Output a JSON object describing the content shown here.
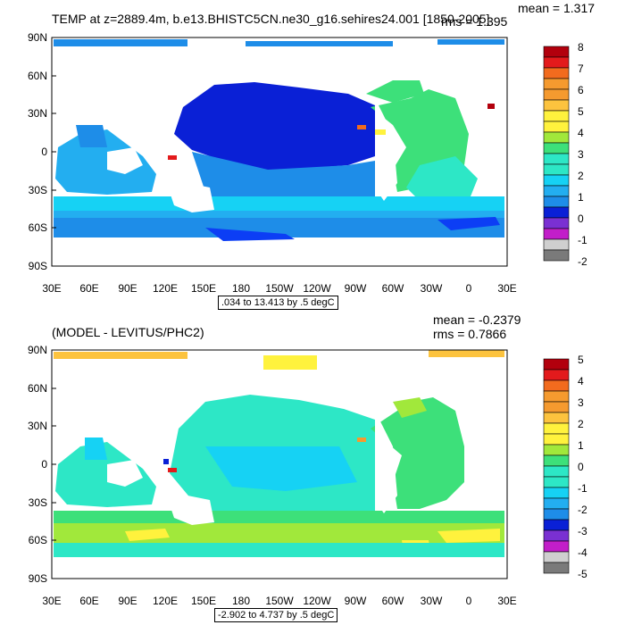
{
  "panels": [
    {
      "title": "TEMP at z=2889.4m, b.e13.BHISTC5CN.ne30_g16.sehires24.001 [1850-2005]",
      "mean": "mean = 1.317",
      "rms": "rms = 1.395",
      "range": ".034 to 13.413 by .5 degC",
      "colorbar": {
        "labels": [
          "8",
          "7",
          "6",
          "5",
          "4",
          "3",
          "2",
          "1",
          "0",
          "-1",
          "-2"
        ],
        "colors": [
          "#b2000d",
          "#e31a1c",
          "#f26b1e",
          "#f59a2f",
          "#fcc33e",
          "#fff23d",
          "#a1e83b",
          "#3de07a",
          "#2de7c6",
          "#16d2f4",
          "#23aef0",
          "#1e8de8",
          "#0c3ef5",
          "#0a20d6",
          "#7a30d2",
          "#c21ec9",
          "#f230e7",
          "#cfcfcf",
          "#7a7a7a"
        ]
      }
    },
    {
      "title": "(MODEL - LEVITUS/PHC2)",
      "mean": "mean = -0.2379",
      "rms": "rms = 0.7866",
      "range": "-2.902 to 4.737 by .5 degC",
      "colorbar": {
        "labels": [
          "5",
          "4",
          "3",
          "2",
          "1",
          "0",
          "-1",
          "-2",
          "-3",
          "-4",
          "-5"
        ],
        "colors": [
          "#b2000d",
          "#e31a1c",
          "#f26b1e",
          "#f59a2f",
          "#fcc33e",
          "#fff23d",
          "#a1e83b",
          "#3de07a",
          "#2de7c6",
          "#16d2f4",
          "#23aef0",
          "#1e8de8",
          "#0c3ef5",
          "#0a20d6",
          "#7a30d2",
          "#c21ec9",
          "#f230e7",
          "#cfcfcf",
          "#7a7a7a"
        ]
      }
    }
  ],
  "lat_labels": [
    "90N",
    "60N",
    "30N",
    "0",
    "30S",
    "60S",
    "90S"
  ],
  "lon_labels": [
    "30E",
    "60E",
    "90E",
    "120E",
    "150E",
    "180",
    "150W",
    "120W",
    "90W",
    "60W",
    "30W",
    "0",
    "30E"
  ]
}
